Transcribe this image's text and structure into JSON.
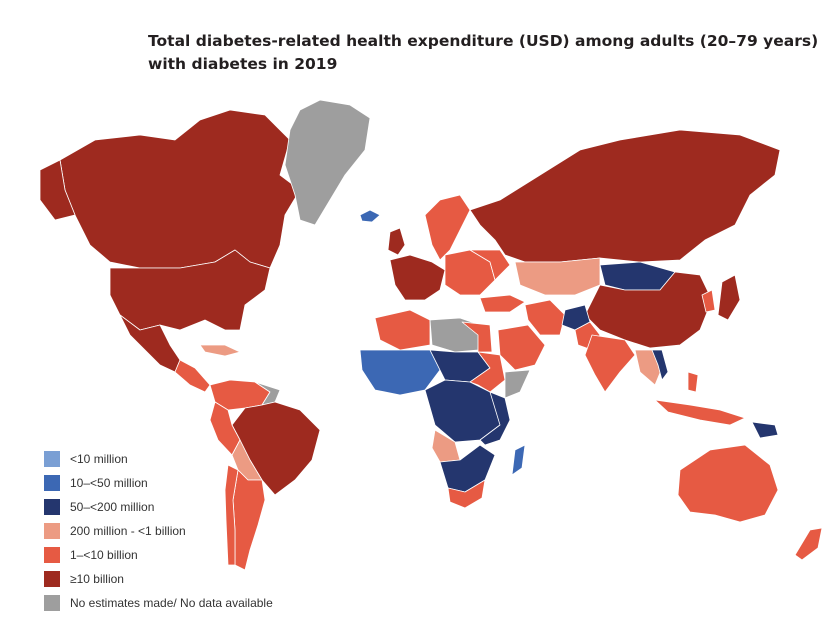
{
  "title_lines": [
    "Total diabetes-related health expenditure (USD) among adults (20–79 years)",
    "with diabetes in 2019"
  ],
  "colors": {
    "lt10m": "#7a9fd4",
    "m10_50": "#3c68b4",
    "m50_200": "#24366e",
    "m200_1b": "#ec9b83",
    "b1_10": "#e65a43",
    "ge10b": "#9e2a1f",
    "nodata": "#9e9e9e"
  },
  "legend": [
    {
      "label": "<10 million",
      "color": "#7a9fd4"
    },
    {
      "label": "10–<50 million",
      "color": "#3c68b4"
    },
    {
      "label": "50–<200 million",
      "color": "#24366e"
    },
    {
      "label": "200 million - <1 billion",
      "color": "#ec9b83"
    },
    {
      "label": "1–<10 billion",
      "color": "#e65a43"
    },
    {
      "label": "≥10 billion",
      "color": "#9e2a1f"
    },
    {
      "label": "No estimates made/ No data available",
      "color": "#9e9e9e"
    }
  ]
}
